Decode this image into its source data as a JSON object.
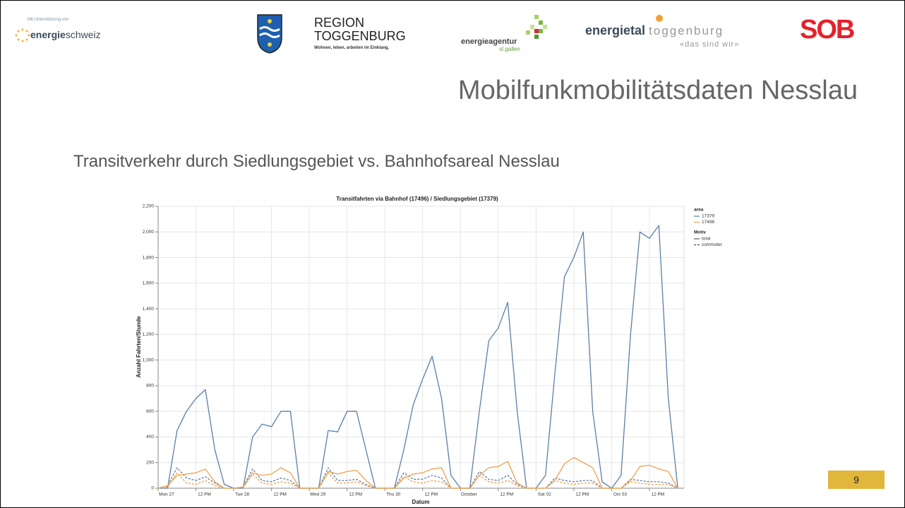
{
  "header": {
    "support_text": "Mit Unterstützung von",
    "energieschweiz": {
      "bold": "energie",
      "rest": "schweiz"
    },
    "region": {
      "line1": "REGION",
      "line2": "TOGGENBURG",
      "tagline": "Wohnen, leben, arbeiten im Einklang."
    },
    "energieagentur": {
      "name": "energieagentur",
      "place": "st.gallen"
    },
    "energietal": {
      "bold": "energietal",
      "rest": "toggenburg",
      "tagline": "«das sind wir»"
    },
    "sob": "SOB"
  },
  "title": "Mobilfunkmobilitätsdaten Nesslau",
  "subtitle": "Transitverkehr durch Siedlungsgebiet vs. Bahnhofsareal Nesslau",
  "page_number": "9",
  "chart_data": {
    "type": "line",
    "title": "Transitfahrten via Bahnhof (17496) / Siedlungsgebiet (17379)",
    "x_label": "Datum",
    "y_label": "Anzahl Fahrten/Stunde",
    "x": [
      0,
      3,
      6,
      9,
      12,
      15,
      18,
      21,
      24,
      27,
      30,
      33,
      36,
      39,
      42,
      45,
      48,
      51,
      54,
      57,
      60,
      63,
      66,
      69,
      72,
      75,
      78,
      81,
      84,
      87,
      90,
      93,
      96,
      99,
      102,
      105,
      108,
      111,
      114,
      117,
      120,
      123,
      126,
      129,
      132,
      135,
      138,
      141,
      144,
      147,
      150,
      153,
      156,
      159,
      162,
      165
    ],
    "series": [
      {
        "area": "17379",
        "motiv": "total",
        "color": "#5b7fa6",
        "dashed": false,
        "values": [
          0,
          0,
          450,
          600,
          700,
          770,
          300,
          30,
          0,
          0,
          400,
          500,
          480,
          600,
          600,
          0,
          0,
          0,
          450,
          440,
          600,
          600,
          300,
          0,
          0,
          0,
          300,
          650,
          850,
          1030,
          700,
          100,
          0,
          0,
          600,
          1150,
          1250,
          1450,
          600,
          0,
          0,
          100,
          900,
          1650,
          1800,
          2000,
          600,
          50,
          0,
          100,
          1200,
          2000,
          1950,
          2050,
          700,
          0
        ]
      },
      {
        "area": "17379",
        "motiv": "commuter",
        "color": "#5b7fa6",
        "dashed": true,
        "values": [
          0,
          20,
          160,
          80,
          60,
          90,
          40,
          0,
          0,
          10,
          150,
          60,
          50,
          80,
          60,
          0,
          0,
          0,
          160,
          60,
          60,
          70,
          30,
          0,
          0,
          0,
          120,
          70,
          70,
          100,
          80,
          0,
          0,
          0,
          130,
          70,
          60,
          100,
          30,
          0,
          0,
          0,
          80,
          60,
          50,
          60,
          60,
          0,
          0,
          0,
          70,
          60,
          50,
          50,
          40,
          0
        ]
      },
      {
        "area": "17496",
        "motiv": "total",
        "color": "#f0a04b",
        "dashed": false,
        "values": [
          0,
          20,
          100,
          110,
          120,
          150,
          50,
          0,
          0,
          10,
          120,
          100,
          110,
          160,
          120,
          0,
          0,
          0,
          130,
          110,
          130,
          140,
          60,
          0,
          0,
          0,
          80,
          110,
          120,
          150,
          160,
          0,
          0,
          0,
          100,
          160,
          170,
          210,
          40,
          0,
          0,
          0,
          60,
          190,
          240,
          200,
          160,
          0,
          0,
          0,
          60,
          170,
          180,
          150,
          130,
          0
        ]
      },
      {
        "area": "17496",
        "motiv": "commuter",
        "color": "#f0a04b",
        "dashed": true,
        "values": [
          0,
          10,
          120,
          40,
          30,
          60,
          20,
          0,
          0,
          5,
          110,
          40,
          30,
          50,
          40,
          0,
          0,
          0,
          120,
          40,
          40,
          50,
          20,
          0,
          0,
          0,
          90,
          50,
          40,
          60,
          50,
          0,
          0,
          0,
          100,
          50,
          40,
          60,
          20,
          0,
          0,
          0,
          60,
          40,
          30,
          40,
          40,
          0,
          0,
          0,
          50,
          40,
          30,
          30,
          30,
          0
        ]
      }
    ],
    "xlim": [
      0,
      167
    ],
    "xticks": [
      {
        "value": 0,
        "label": "Mon 27"
      },
      {
        "value": 12,
        "label": "12 PM"
      },
      {
        "value": 24,
        "label": "Tue 28"
      },
      {
        "value": 36,
        "label": "12 PM"
      },
      {
        "value": 48,
        "label": "Wed 29"
      },
      {
        "value": 60,
        "label": "12 PM"
      },
      {
        "value": 72,
        "label": "Thu 30"
      },
      {
        "value": 84,
        "label": "12 PM"
      },
      {
        "value": 96,
        "label": "October"
      },
      {
        "value": 108,
        "label": "12 PM"
      },
      {
        "value": 120,
        "label": "Sat 02"
      },
      {
        "value": 132,
        "label": "12 PM"
      },
      {
        "value": 144,
        "label": "Oct 03"
      },
      {
        "value": 156,
        "label": "12 PM"
      }
    ],
    "ylim": [
      0,
      2200
    ],
    "yticks": [
      0,
      {
        "value": 200,
        "label": "200"
      },
      {
        "value": 400,
        "label": "400"
      },
      {
        "value": 600,
        "label": "600"
      },
      {
        "value": 800,
        "label": "800"
      },
      {
        "value": 1000,
        "label": "1,000"
      },
      {
        "value": 1200,
        "label": "1,200"
      },
      {
        "value": 1400,
        "label": "1,400"
      },
      {
        "value": 1600,
        "label": "1,600"
      },
      {
        "value": 1800,
        "label": "1,800"
      },
      {
        "value": 2000,
        "label": "2,000"
      },
      {
        "value": 2200,
        "label": "2,200"
      }
    ],
    "grid": true,
    "legend_position": "right",
    "legend": [
      {
        "title": "area",
        "items": [
          "17379",
          "17496"
        ]
      },
      {
        "title": "Motiv",
        "items": [
          "total",
          "commuter"
        ]
      }
    ]
  }
}
